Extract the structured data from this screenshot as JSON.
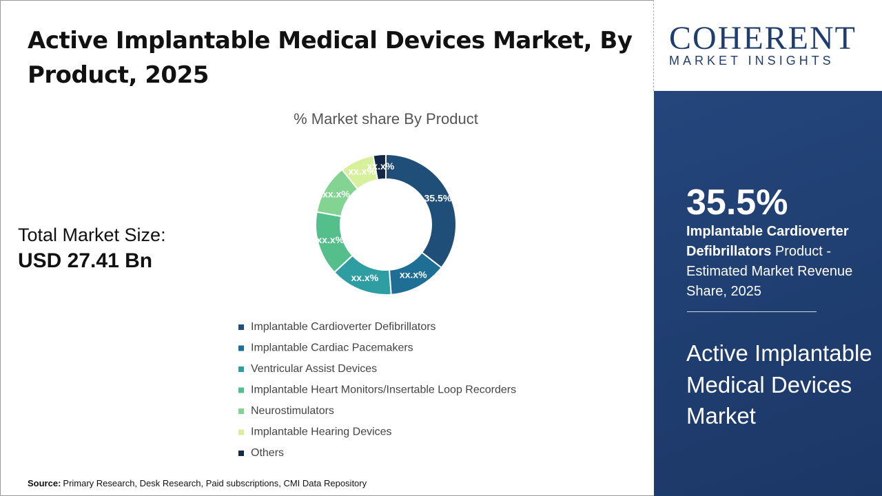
{
  "title": "Active Implantable Medical Devices Market, By Product, 2025",
  "total_market": {
    "label": "Total Market Size:",
    "value": "USD 27.41 Bn"
  },
  "source": {
    "label": "Source:",
    "text": "Primary Research, Desk Research, Paid subscriptions, CMI Data Repository"
  },
  "logo": {
    "name": "COHERENT",
    "tagline": "MARKET INSIGHTS"
  },
  "panel": {
    "stat": "35.5%",
    "highlight_bold": "Implantable Cardioverter Defibrillators",
    "highlight_text": "Product - Estimated Market Revenue Share, 2025",
    "market_name": "Active Implantable Medical Devices Market"
  },
  "chart_data": {
    "type": "donut",
    "subtitle": "% Market share By Product",
    "categories": [
      "Implantable Cardioverter Defibrillators",
      "Implantable Cardiac Pacemakers",
      "Ventricular Assist Devices",
      "Implantable Heart Monitors/Insertable Loop Recorders",
      "Neurostimulators",
      "Implantable Hearing Devices",
      "Others"
    ],
    "values": [
      35.5,
      13.3,
      14.3,
      14.8,
      11.4,
      7.8,
      2.9
    ],
    "value_labels": [
      "35.5%",
      "xx.x%",
      "xx.x%",
      "xx.x%",
      "xx.x%",
      "xx.x%",
      "xx.x%"
    ],
    "colors": [
      "#1f4e79",
      "#1f6e96",
      "#2e9ea3",
      "#55bf8c",
      "#83d492",
      "#d7f09c",
      "#14284a"
    ],
    "legend": "bottom"
  }
}
